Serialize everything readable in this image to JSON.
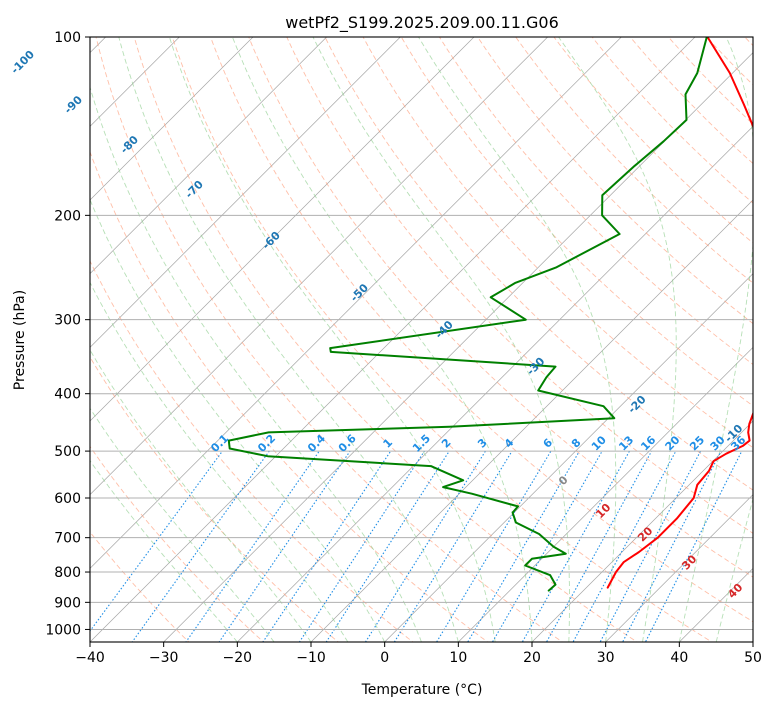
{
  "chart_data": {
    "type": "line",
    "subtype": "skew-t log-p sounding",
    "title": "wetPf2_S199.2025.209.00.11.G06",
    "xlabel": "Temperature (°C)",
    "ylabel": "Pressure (hPa)",
    "xlim": [
      -40,
      50
    ],
    "ylim": [
      1050,
      100
    ],
    "y_scale": "log",
    "grid": true,
    "x_ticks": [
      -40,
      -30,
      -20,
      -10,
      0,
      10,
      20,
      30,
      40,
      50
    ],
    "y_ticks": [
      100,
      200,
      300,
      400,
      500,
      600,
      700,
      800,
      900,
      1000
    ],
    "series": [
      {
        "color": "#ff0000",
        "points": [
          {
            "p": 850,
            "t": 22.9
          },
          {
            "p": 800,
            "t": 21.9
          },
          {
            "p": 770,
            "t": 21.6
          },
          {
            "p": 740,
            "t": 22.3
          },
          {
            "p": 700,
            "t": 22.9
          },
          {
            "p": 650,
            "t": 22.9
          },
          {
            "p": 600,
            "t": 22.4
          },
          {
            "p": 570,
            "t": 21.1
          },
          {
            "p": 540,
            "t": 20.8
          },
          {
            "p": 520,
            "t": 20.1
          },
          {
            "p": 505,
            "t": 20.8
          },
          {
            "p": 490,
            "t": 22.0
          },
          {
            "p": 480,
            "t": 22.2
          },
          {
            "p": 465,
            "t": 20.9
          },
          {
            "p": 450,
            "t": 19.9
          },
          {
            "p": 430,
            "t": 18.9
          },
          {
            "p": 400,
            "t": 18.0
          },
          {
            "p": 370,
            "t": 16.9
          },
          {
            "p": 350,
            "t": 15.5
          },
          {
            "p": 300,
            "t": 9.4
          },
          {
            "p": 260,
            "t": 3.5
          },
          {
            "p": 230,
            "t": -0.3
          },
          {
            "p": 200,
            "t": -3.0
          },
          {
            "p": 190,
            "t": -5.6
          },
          {
            "p": 170,
            "t": -10.8
          },
          {
            "p": 150,
            "t": -17.1
          },
          {
            "p": 130,
            "t": -24.2
          },
          {
            "p": 115,
            "t": -30.4
          },
          {
            "p": 100,
            "t": -38.3
          }
        ]
      },
      {
        "color": "#008000",
        "points": [
          {
            "p": 860,
            "t": 15.3
          },
          {
            "p": 840,
            "t": 15.4
          },
          {
            "p": 810,
            "t": 13.4
          },
          {
            "p": 780,
            "t": 8.7
          },
          {
            "p": 760,
            "t": 8.7
          },
          {
            "p": 745,
            "t": 12.6
          },
          {
            "p": 725,
            "t": 10.0
          },
          {
            "p": 690,
            "t": 6.3
          },
          {
            "p": 660,
            "t": 1.6
          },
          {
            "p": 635,
            "t": -0.2
          },
          {
            "p": 620,
            "t": -0.3
          },
          {
            "p": 590,
            "t": -8.3
          },
          {
            "p": 575,
            "t": -13.1
          },
          {
            "p": 560,
            "t": -11.3
          },
          {
            "p": 530,
            "t": -17.6
          },
          {
            "p": 510,
            "t": -41.1
          },
          {
            "p": 495,
            "t": -47.3
          },
          {
            "p": 480,
            "t": -48.5
          },
          {
            "p": 465,
            "t": -44.2
          },
          {
            "p": 455,
            "t": -20.4
          },
          {
            "p": 440,
            "t": 0.8
          },
          {
            "p": 420,
            "t": -2.3
          },
          {
            "p": 395,
            "t": -13.3
          },
          {
            "p": 375,
            "t": -14.0
          },
          {
            "p": 360,
            "t": -14.2
          },
          {
            "p": 340,
            "t": -46.7
          },
          {
            "p": 335,
            "t": -47.3
          },
          {
            "p": 300,
            "t": -24.6
          },
          {
            "p": 275,
            "t": -32.4
          },
          {
            "p": 260,
            "t": -31.0
          },
          {
            "p": 245,
            "t": -27.6
          },
          {
            "p": 215,
            "t": -23.5
          },
          {
            "p": 200,
            "t": -28.4
          },
          {
            "p": 185,
            "t": -31.1
          },
          {
            "p": 165,
            "t": -30.7
          },
          {
            "p": 150,
            "t": -30.1
          },
          {
            "p": 138,
            "t": -29.9
          },
          {
            "p": 125,
            "t": -33.5
          },
          {
            "p": 115,
            "t": -34.8
          },
          {
            "p": 100,
            "t": -38.4
          }
        ]
      }
    ],
    "background": {
      "dry_adiabat_labels": [
        "-100",
        "-90",
        "-80",
        "-70",
        "-60",
        "-50",
        "-40",
        "-30",
        "-20",
        "-10"
      ],
      "mixing_ratio_labels": [
        "0.1",
        "0.2",
        "0.4",
        "0.6",
        "1",
        "1.5",
        "2",
        "3",
        "4",
        "6",
        "8",
        "10",
        "13",
        "16",
        "20",
        "25",
        "30",
        "36"
      ],
      "moist_adiabat_labels": [
        "0",
        "10",
        "20",
        "30",
        "40"
      ]
    },
    "colors": {
      "temperature": "#ff0000",
      "dewpoint": "#008000",
      "grid": "#b0b0b0",
      "dry_adiabat": "#ff9c7a",
      "moist_adiabat": "#8fce8f",
      "mixing_ratio": "#1f8ee6",
      "dry_adiabat_label": "#1f77b4",
      "moist_adiabat_label": "#d62728",
      "isotherm": "#888888"
    }
  }
}
